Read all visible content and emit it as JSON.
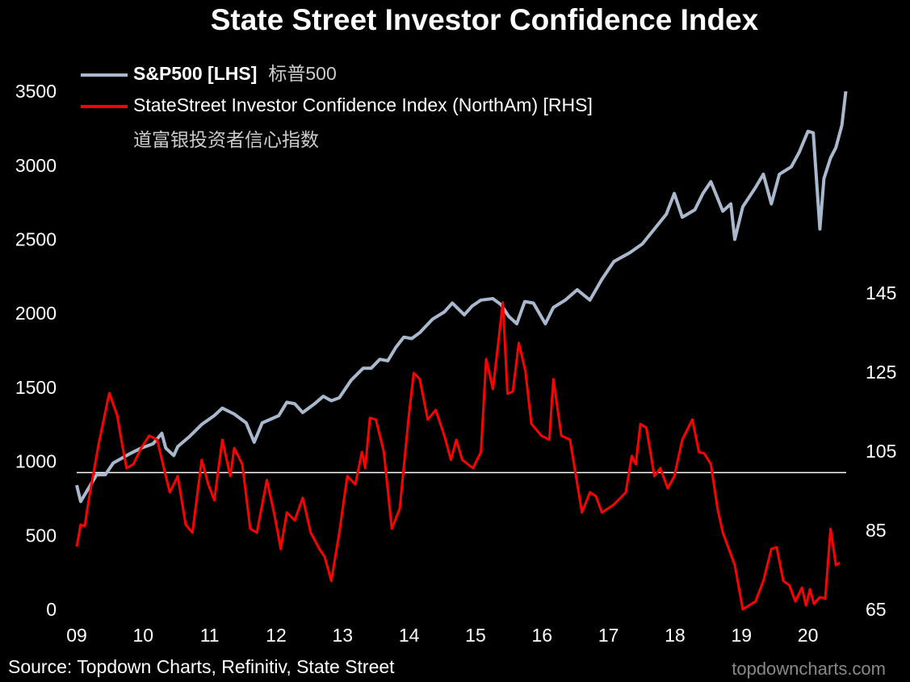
{
  "chart_data": {
    "type": "line",
    "title": "State Street Investor Confidence Index",
    "source": "Source: Topdown Charts, Refinitiv, State Street",
    "watermark": "topdowncharts.com",
    "xlim": [
      2009,
      2020.6
    ],
    "xticks": [
      {
        "value": 2009,
        "label": "09"
      },
      {
        "value": 2010,
        "label": "10"
      },
      {
        "value": 2011,
        "label": "11"
      },
      {
        "value": 2012,
        "label": "12"
      },
      {
        "value": 2013,
        "label": "13"
      },
      {
        "value": 2014,
        "label": "14"
      },
      {
        "value": 2015,
        "label": "15"
      },
      {
        "value": 2016,
        "label": "16"
      },
      {
        "value": 2017,
        "label": "17"
      },
      {
        "value": 2018,
        "label": "18"
      },
      {
        "value": 2019,
        "label": "19"
      },
      {
        "value": 2020,
        "label": "20"
      }
    ],
    "ylim": [
      0,
      3500
    ],
    "yticks": [
      0,
      500,
      1000,
      1500,
      2000,
      2500,
      3000,
      3500
    ],
    "y2lim": [
      65,
      196
    ],
    "y2ticks": [
      65,
      85,
      105,
      125,
      145
    ],
    "reference_line": {
      "value": 100,
      "axis": "y2",
      "color": "#ffffff"
    },
    "series": [
      {
        "name": "S&P500 [LHS]",
        "name_cn": "标普500",
        "color": "#a9b8cc",
        "x": [
          2009.0,
          2009.06,
          2009.3,
          2009.43,
          2009.55,
          2009.79,
          2009.97,
          2010.15,
          2010.28,
          2010.34,
          2010.46,
          2010.52,
          2010.7,
          2010.88,
          2011.07,
          2011.19,
          2011.37,
          2011.55,
          2011.67,
          2011.79,
          2012.04,
          2012.16,
          2012.28,
          2012.4,
          2012.58,
          2012.71,
          2012.83,
          2012.95,
          2013.13,
          2013.31,
          2013.43,
          2013.56,
          2013.68,
          2013.8,
          2013.92,
          2014.04,
          2014.16,
          2014.35,
          2014.53,
          2014.65,
          2014.83,
          2014.95,
          2015.08,
          2015.26,
          2015.38,
          2015.5,
          2015.62,
          2015.74,
          2015.87,
          2016.05,
          2016.17,
          2016.35,
          2016.53,
          2016.72,
          2016.9,
          2017.08,
          2017.32,
          2017.51,
          2017.69,
          2017.87,
          2017.99,
          2018.11,
          2018.3,
          2018.42,
          2018.54,
          2018.72,
          2018.84,
          2018.9,
          2019.02,
          2019.21,
          2019.33,
          2019.45,
          2019.57,
          2019.75,
          2019.87,
          2020.0,
          2020.08,
          2020.18,
          2020.24,
          2020.34,
          2020.42,
          2020.51,
          2020.57
        ],
        "values": [
          850,
          740,
          920,
          920,
          1000,
          1060,
          1100,
          1130,
          1200,
          1100,
          1050,
          1110,
          1180,
          1260,
          1320,
          1370,
          1330,
          1270,
          1140,
          1270,
          1320,
          1410,
          1400,
          1340,
          1400,
          1450,
          1420,
          1440,
          1560,
          1640,
          1640,
          1700,
          1690,
          1780,
          1850,
          1840,
          1880,
          1970,
          2020,
          2080,
          2000,
          2060,
          2100,
          2110,
          2070,
          1990,
          1940,
          2090,
          2080,
          1940,
          2050,
          2100,
          2170,
          2100,
          2240,
          2360,
          2420,
          2480,
          2580,
          2680,
          2820,
          2660,
          2710,
          2820,
          2900,
          2700,
          2750,
          2510,
          2730,
          2860,
          2950,
          2750,
          2950,
          3000,
          3100,
          3240,
          3230,
          2580,
          2920,
          3060,
          3130,
          3280,
          3510
        ]
      },
      {
        "name": "StateStreet Investor Confidence Index (NorthAm) [RHS]",
        "name_cn": "道富银投资者信心指数",
        "color": "#ff0000",
        "axis": "y2",
        "x": [
          2009.0,
          2009.06,
          2009.12,
          2009.18,
          2009.33,
          2009.49,
          2009.61,
          2009.67,
          2009.75,
          2009.85,
          2009.97,
          2010.09,
          2010.21,
          2010.34,
          2010.4,
          2010.52,
          2010.64,
          2010.74,
          2010.88,
          2010.98,
          2011.07,
          2011.19,
          2011.31,
          2011.37,
          2011.49,
          2011.61,
          2011.71,
          2011.86,
          2011.98,
          2012.07,
          2012.16,
          2012.28,
          2012.4,
          2012.52,
          2012.65,
          2012.73,
          2012.83,
          2012.95,
          2013.07,
          2013.19,
          2013.29,
          2013.34,
          2013.41,
          2013.5,
          2013.62,
          2013.74,
          2013.86,
          2013.99,
          2014.07,
          2014.16,
          2014.28,
          2014.4,
          2014.53,
          2014.63,
          2014.71,
          2014.8,
          2014.96,
          2015.08,
          2015.16,
          2015.26,
          2015.32,
          2015.41,
          2015.48,
          2015.56,
          2015.65,
          2015.75,
          2015.84,
          2015.99,
          2016.11,
          2016.17,
          2016.29,
          2016.42,
          2016.6,
          2016.72,
          2016.81,
          2016.9,
          2017.08,
          2017.26,
          2017.35,
          2017.41,
          2017.48,
          2017.57,
          2017.69,
          2017.78,
          2017.89,
          2017.99,
          2018.11,
          2018.26,
          2018.36,
          2018.44,
          2018.54,
          2018.64,
          2018.72,
          2018.9,
          2019.02,
          2019.21,
          2019.33,
          2019.45,
          2019.53,
          2019.63,
          2019.72,
          2019.81,
          2019.91,
          2019.97,
          2020.03,
          2020.09,
          2020.18,
          2020.26,
          2020.34,
          2020.42,
          2020.48
        ],
        "values": [
          81.3,
          86.8,
          86.4,
          93.0,
          107.2,
          120.1,
          114.4,
          108.3,
          101.1,
          102.1,
          106.2,
          109.3,
          108.3,
          99.1,
          95.0,
          99.1,
          86.8,
          84.8,
          103.2,
          97.0,
          93.0,
          108.3,
          99.1,
          106.2,
          102.1,
          85.8,
          84.8,
          98.1,
          88.9,
          80.7,
          89.9,
          87.9,
          93.6,
          84.8,
          80.7,
          78.7,
          72.6,
          84.8,
          99.1,
          97.0,
          105.2,
          101.1,
          113.8,
          113.4,
          105.2,
          85.8,
          90.9,
          113.4,
          125.2,
          123.6,
          113.4,
          115.8,
          109.3,
          103.2,
          108.3,
          103.2,
          101.1,
          105.2,
          128.7,
          121.1,
          129.7,
          143.0,
          119.9,
          120.5,
          132.8,
          125.6,
          112.3,
          109.3,
          108.3,
          123.6,
          109.3,
          108.3,
          89.9,
          95.0,
          94.0,
          89.9,
          91.9,
          95.0,
          104.2,
          102.1,
          112.3,
          111.3,
          99.1,
          101.1,
          96.0,
          99.1,
          108.3,
          113.4,
          105.2,
          104.8,
          102.1,
          90.9,
          84.8,
          76.6,
          65.4,
          67.4,
          72.6,
          80.7,
          81.1,
          72.6,
          71.5,
          67.4,
          70.9,
          66.4,
          70.5,
          66.8,
          68.5,
          68.1,
          85.8,
          76.6,
          77.2
        ]
      }
    ]
  }
}
